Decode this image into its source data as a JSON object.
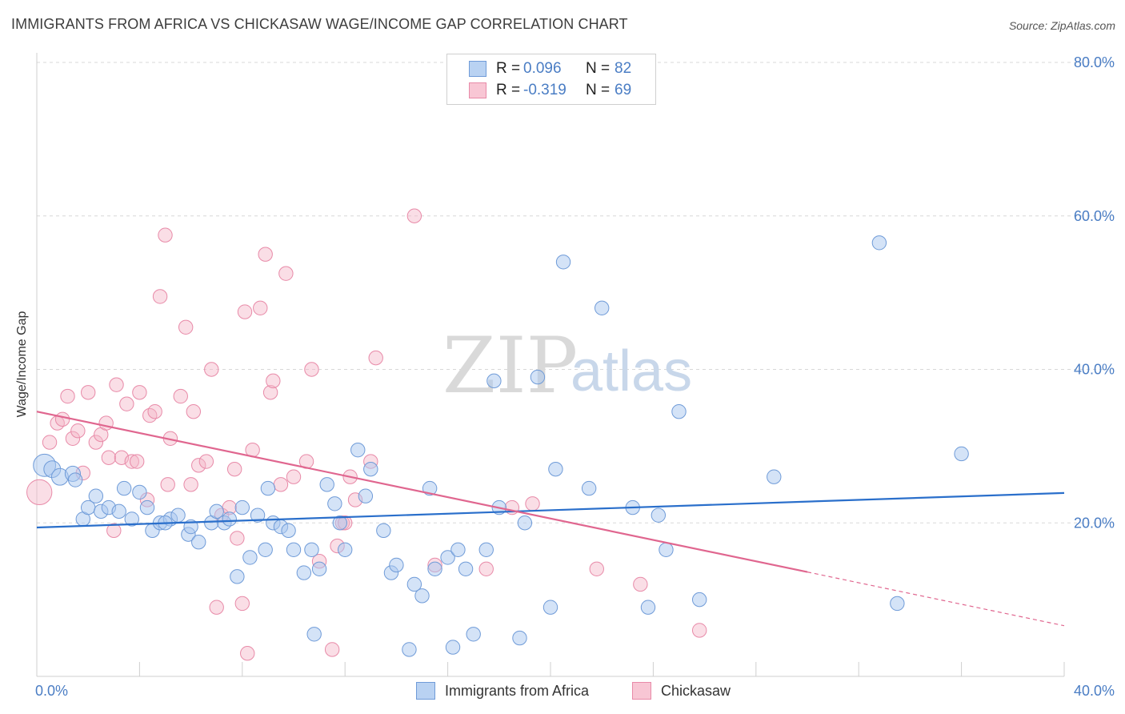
{
  "title": "IMMIGRANTS FROM AFRICA VS CHICKASAW WAGE/INCOME GAP CORRELATION CHART",
  "source": "Source: ZipAtlas.com",
  "watermark": {
    "zip": "ZIP",
    "atlas": "atlas"
  },
  "colors": {
    "blue_fill": "#a9c7ef",
    "blue_stroke": "#6f9bd8",
    "blue_line": "#2a6fcb",
    "pink_fill": "#f5b5c8",
    "pink_stroke": "#e88aa8",
    "pink_line": "#e0668f",
    "grid": "#d8d8d8",
    "tick_text": "#4a7dc4"
  },
  "legend": {
    "rows": [
      {
        "r_label": "R =",
        "r_value": "0.096",
        "n_label": "N =",
        "n_value": "82"
      },
      {
        "r_label": "R =",
        "r_value": "-0.319",
        "n_label": "N =",
        "n_value": "69"
      }
    ]
  },
  "bottom_legend": {
    "series_1": "Immigrants from Africa",
    "series_2": "Chickasaw"
  },
  "chart_data": {
    "type": "scatter",
    "title": "IMMIGRANTS FROM AFRICA VS CHICKASAW WAGE/INCOME GAP CORRELATION CHART",
    "xlabel": "",
    "ylabel": "Wage/Income Gap",
    "xlim": [
      0,
      40
    ],
    "ylim": [
      0,
      80
    ],
    "x_tick_labels": [
      "0.0%",
      "40.0%"
    ],
    "y_tick_labels": [
      "20.0%",
      "40.0%",
      "60.0%",
      "80.0%"
    ],
    "y_ticks": [
      20,
      40,
      60,
      80
    ],
    "grid": true,
    "legend_placement": "top-center",
    "series": [
      {
        "name": "Immigrants from Africa",
        "r": 0.096,
        "n": 82,
        "trend": {
          "x": [
            0,
            40
          ],
          "y": [
            19.4,
            23.9
          ]
        },
        "points": [
          [
            0.3,
            27.5,
            16
          ],
          [
            0.6,
            27.0,
            12
          ],
          [
            0.9,
            26.0,
            12
          ],
          [
            1.4,
            26.4,
            11
          ],
          [
            1.5,
            25.6,
            10
          ],
          [
            1.8,
            20.5,
            10
          ],
          [
            2.0,
            22.0,
            10
          ],
          [
            2.3,
            23.5,
            10
          ],
          [
            2.5,
            21.5,
            10
          ],
          [
            2.8,
            22.0,
            10
          ],
          [
            3.2,
            21.5,
            10
          ],
          [
            3.4,
            24.5,
            10
          ],
          [
            3.7,
            20.5,
            10
          ],
          [
            4.0,
            24.0,
            10
          ],
          [
            4.3,
            22.0,
            10
          ],
          [
            4.5,
            19.0,
            10
          ],
          [
            4.8,
            20.0,
            10
          ],
          [
            5.2,
            20.5,
            10
          ],
          [
            5.5,
            21.0,
            10
          ],
          [
            5.9,
            18.5,
            10
          ],
          [
            6.0,
            19.5,
            10
          ],
          [
            6.3,
            17.5,
            10
          ],
          [
            6.8,
            20.0,
            10
          ],
          [
            7.0,
            21.5,
            10
          ],
          [
            7.3,
            20.0,
            10
          ],
          [
            7.5,
            20.5,
            10
          ],
          [
            7.8,
            13.0,
            10
          ],
          [
            8.0,
            22.0,
            10
          ],
          [
            8.3,
            15.5,
            10
          ],
          [
            8.6,
            21.0,
            10
          ],
          [
            8.9,
            16.5,
            10
          ],
          [
            9.2,
            20.0,
            10
          ],
          [
            9.5,
            19.5,
            10
          ],
          [
            9.8,
            19.0,
            10
          ],
          [
            10.0,
            16.5,
            10
          ],
          [
            10.4,
            13.5,
            10
          ],
          [
            10.7,
            16.5,
            10
          ],
          [
            11.0,
            14.0,
            10
          ],
          [
            11.3,
            25.0,
            10
          ],
          [
            11.6,
            22.5,
            10
          ],
          [
            11.8,
            20.0,
            10
          ],
          [
            12.0,
            16.5,
            10
          ],
          [
            12.5,
            29.5,
            10
          ],
          [
            12.8,
            23.5,
            10
          ],
          [
            13.0,
            27.0,
            10
          ],
          [
            13.5,
            19.0,
            10
          ],
          [
            13.8,
            13.5,
            10
          ],
          [
            14.0,
            14.5,
            10
          ],
          [
            14.5,
            3.5,
            10
          ],
          [
            14.7,
            12.0,
            10
          ],
          [
            15.0,
            10.5,
            10
          ],
          [
            15.3,
            24.5,
            10
          ],
          [
            15.5,
            14.0,
            10
          ],
          [
            16.0,
            15.5,
            10
          ],
          [
            16.4,
            16.5,
            10
          ],
          [
            16.7,
            14.0,
            10
          ],
          [
            17.0,
            5.5,
            10
          ],
          [
            17.5,
            16.5,
            10
          ],
          [
            17.8,
            38.5,
            10
          ],
          [
            18.0,
            22.0,
            10
          ],
          [
            18.8,
            5.0,
            10
          ],
          [
            19.0,
            20.0,
            10
          ],
          [
            19.5,
            39.0,
            10
          ],
          [
            20.0,
            9.0,
            10
          ],
          [
            20.2,
            27.0,
            10
          ],
          [
            20.5,
            54.0,
            10
          ],
          [
            21.5,
            24.5,
            10
          ],
          [
            22.0,
            48.0,
            10
          ],
          [
            23.2,
            22.0,
            10
          ],
          [
            23.8,
            9.0,
            10
          ],
          [
            24.2,
            21.0,
            10
          ],
          [
            24.5,
            16.5,
            10
          ],
          [
            25.0,
            34.5,
            10
          ],
          [
            25.8,
            10.0,
            10
          ],
          [
            28.7,
            26.0,
            10
          ],
          [
            32.8,
            56.5,
            10
          ],
          [
            33.5,
            9.5,
            10
          ],
          [
            36.0,
            29.0,
            10
          ],
          [
            10.8,
            5.5,
            10
          ],
          [
            16.2,
            3.8,
            10
          ],
          [
            5.0,
            20.0,
            10
          ],
          [
            9.0,
            24.5,
            10
          ]
        ]
      },
      {
        "name": "Chickasaw",
        "r": -0.319,
        "n": 69,
        "trend": {
          "x": [
            0,
            30
          ],
          "y": [
            34.5,
            13.6
          ]
        },
        "trend_dashed": {
          "x": [
            30,
            40
          ],
          "y": [
            13.6,
            6.6
          ]
        },
        "points": [
          [
            0.1,
            24.0,
            18
          ],
          [
            0.5,
            30.5,
            10
          ],
          [
            0.8,
            33.0,
            10
          ],
          [
            1.0,
            33.5,
            10
          ],
          [
            1.2,
            36.5,
            10
          ],
          [
            1.4,
            31.0,
            10
          ],
          [
            1.6,
            32.0,
            10
          ],
          [
            1.8,
            26.5,
            10
          ],
          [
            2.0,
            37.0,
            10
          ],
          [
            2.3,
            30.5,
            10
          ],
          [
            2.5,
            31.5,
            10
          ],
          [
            2.7,
            33.0,
            10
          ],
          [
            2.8,
            28.5,
            10
          ],
          [
            3.0,
            19.0,
            10
          ],
          [
            3.1,
            38.0,
            10
          ],
          [
            3.3,
            28.5,
            10
          ],
          [
            3.5,
            35.5,
            10
          ],
          [
            3.7,
            28.0,
            10
          ],
          [
            3.9,
            28.0,
            10
          ],
          [
            4.0,
            37.0,
            10
          ],
          [
            4.3,
            23.0,
            10
          ],
          [
            4.4,
            34.0,
            10
          ],
          [
            4.6,
            34.5,
            10
          ],
          [
            4.8,
            49.5,
            10
          ],
          [
            5.0,
            57.5,
            10
          ],
          [
            5.1,
            25.0,
            10
          ],
          [
            5.2,
            31.0,
            10
          ],
          [
            5.6,
            36.5,
            10
          ],
          [
            5.8,
            45.5,
            10
          ],
          [
            6.0,
            25.0,
            10
          ],
          [
            6.1,
            34.5,
            10
          ],
          [
            6.3,
            27.5,
            10
          ],
          [
            6.6,
            28.0,
            10
          ],
          [
            6.8,
            40.0,
            10
          ],
          [
            7.0,
            9.0,
            10
          ],
          [
            7.2,
            21.0,
            10
          ],
          [
            7.5,
            22.0,
            10
          ],
          [
            7.7,
            27.0,
            10
          ],
          [
            7.8,
            18.0,
            10
          ],
          [
            8.0,
            9.5,
            10
          ],
          [
            8.1,
            47.5,
            10
          ],
          [
            8.2,
            3.0,
            10
          ],
          [
            8.4,
            29.5,
            10
          ],
          [
            8.7,
            48.0,
            10
          ],
          [
            8.9,
            55.0,
            10
          ],
          [
            9.1,
            37.0,
            10
          ],
          [
            9.2,
            38.5,
            10
          ],
          [
            9.5,
            25.0,
            10
          ],
          [
            9.7,
            52.5,
            10
          ],
          [
            10.0,
            26.0,
            10
          ],
          [
            10.5,
            28.0,
            10
          ],
          [
            10.7,
            40.0,
            10
          ],
          [
            11.0,
            15.0,
            10
          ],
          [
            11.5,
            3.5,
            10
          ],
          [
            11.7,
            17.0,
            10
          ],
          [
            11.9,
            20.0,
            10
          ],
          [
            12.2,
            26.0,
            10
          ],
          [
            12.4,
            23.0,
            10
          ],
          [
            13.0,
            28.0,
            10
          ],
          [
            13.2,
            41.5,
            10
          ],
          [
            14.7,
            60.0,
            10
          ],
          [
            15.5,
            14.5,
            10
          ],
          [
            17.5,
            14.0,
            10
          ],
          [
            18.5,
            22.0,
            10
          ],
          [
            19.3,
            22.5,
            10
          ],
          [
            21.8,
            14.0,
            10
          ],
          [
            23.5,
            12.0,
            10
          ],
          [
            25.8,
            6.0,
            10
          ],
          [
            12.0,
            20.0,
            10
          ]
        ]
      }
    ]
  }
}
